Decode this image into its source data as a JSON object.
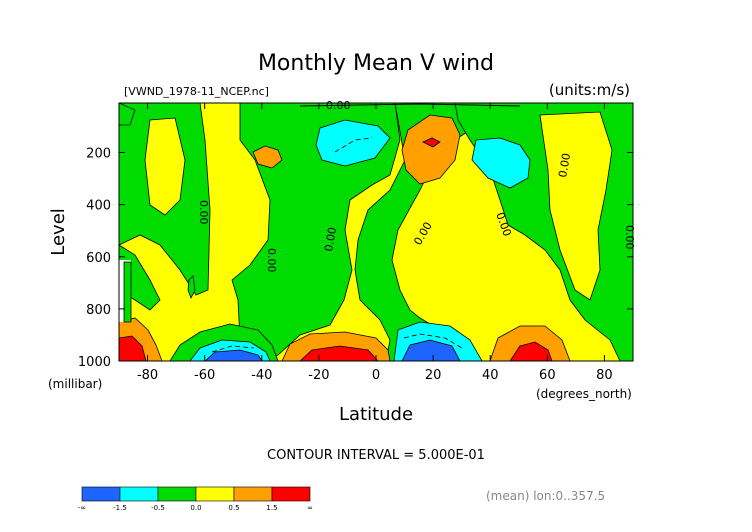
{
  "chart_data": {
    "type": "heatmap",
    "title": "Monthly Mean V wind",
    "subtitle_left": "[VWND_1978-11_NCEP.nc]",
    "subtitle_right": "(units:m/s)",
    "xlabel": "Latitude",
    "xunits": "(degrees_north)",
    "ylabel": "Level",
    "yunits": "(millibar)",
    "xlim": [
      -90,
      90
    ],
    "ylim": [
      1000,
      10
    ],
    "xticks": [
      -80,
      -60,
      -40,
      -20,
      0,
      20,
      40,
      60,
      80
    ],
    "yticks": [
      200,
      400,
      600,
      800,
      1000
    ],
    "contour_interval_text": "CONTOUR INTERVAL = 5.000E-01",
    "zero_contour_label": "0.00",
    "footer_text": "(mean) lon:0..357.5",
    "legend": {
      "labels": [
        "-∞",
        "-1.5",
        "-0.5",
        "0.0",
        "0.5",
        "1.5",
        "∞"
      ],
      "colors": [
        "#1e64ff",
        "#00ffff",
        "#00dc00",
        "#ffff00",
        "#ffa000",
        "#ff0000"
      ]
    },
    "regions": [
      {
        "name": "high-latitude-south-green",
        "value_range": [
          -0.5,
          0.0
        ],
        "x": [
          -90,
          -70
        ],
        "y": [
          10,
          620
        ]
      },
      {
        "name": "central-green-band",
        "value_range": [
          -0.5,
          0.0
        ],
        "x": [
          -30,
          10
        ],
        "y": [
          10,
          1000
        ]
      },
      {
        "name": "upper-cyan-cell",
        "value_range": [
          -1.5,
          -0.5
        ],
        "x": [
          -20,
          0
        ],
        "y": [
          150,
          230
        ]
      },
      {
        "name": "upper-orange-cell",
        "value_range": [
          0.5,
          1.5
        ],
        "x": [
          10,
          28
        ],
        "y": [
          100,
          300
        ]
      },
      {
        "name": "upper-red-core",
        "value_range": [
          1.5,
          2.0
        ],
        "x": [
          18,
          24
        ],
        "y": [
          140,
          160
        ]
      },
      {
        "name": "right-cyan-cell",
        "value_range": [
          -1.5,
          -0.5
        ],
        "x": [
          36,
          56
        ],
        "y": [
          180,
          290
        ]
      },
      {
        "name": "northern-green-region",
        "value_range": [
          -0.5,
          0.0
        ],
        "x": [
          44,
          90
        ],
        "y": [
          10,
          1000
        ]
      },
      {
        "name": "surface-blue-cell-south",
        "value_range": [
          -2.5,
          -1.5
        ],
        "x": [
          -60,
          -40
        ],
        "y": [
          940,
          1000
        ]
      },
      {
        "name": "surface-red-cell-south",
        "value_range": [
          1.5,
          3.0
        ],
        "x": [
          -24,
          -2
        ],
        "y": [
          930,
          1000
        ]
      },
      {
        "name": "surface-blue-cell-equator",
        "value_range": [
          -2.5,
          -1.5
        ],
        "x": [
          10,
          30
        ],
        "y": [
          920,
          1000
        ]
      },
      {
        "name": "surface-red-cell-north",
        "value_range": [
          1.5,
          3.0
        ],
        "x": [
          48,
          58
        ],
        "y": [
          920,
          1000
        ]
      },
      {
        "name": "surface-red-cell-pole",
        "value_range": [
          1.5,
          3.0
        ],
        "x": [
          -90,
          -86
        ],
        "y": [
          900,
          1000
        ]
      }
    ]
  }
}
